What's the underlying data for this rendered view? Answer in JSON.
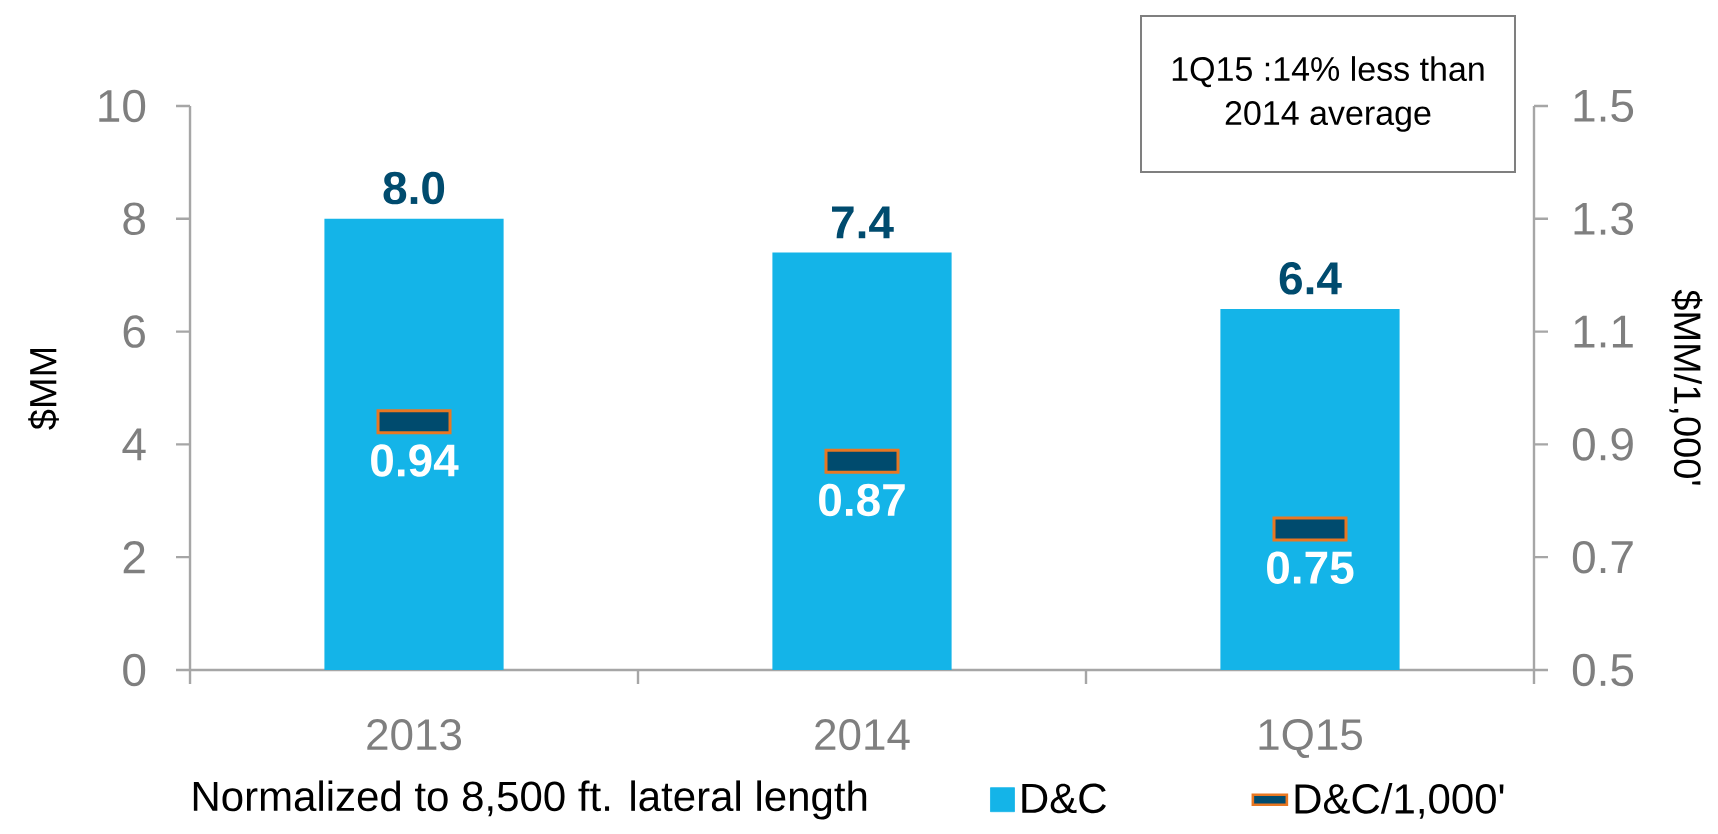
{
  "chart_data": {
    "type": "bar",
    "categories": [
      "2013",
      "2014",
      "1Q15"
    ],
    "ylabel": "$MM",
    "y2label": "$MM/1,000'",
    "ylim": [
      0,
      10
    ],
    "yticks": [
      0,
      2,
      4,
      6,
      8,
      10
    ],
    "y2lim": [
      0.5,
      1.5
    ],
    "y2ticks": [
      0.5,
      0.7,
      0.9,
      1.1,
      1.3,
      1.5
    ],
    "series": [
      {
        "name": "D&C",
        "color": "#14b4e8",
        "values": [
          8.0,
          7.4,
          6.4
        ],
        "value_labels": [
          "8.0",
          "7.4",
          "6.4"
        ]
      },
      {
        "name": "D&C/1,000'",
        "type": "scatter",
        "axis": "y2",
        "color": "#004b6e",
        "values": [
          0.94,
          0.87,
          0.75
        ],
        "value_labels": [
          "0.94",
          "0.87",
          "0.75"
        ]
      }
    ],
    "legend": "bottom",
    "annotations": [
      "1Q15 :14% less than 2014 average",
      "Normalized to 8,500 ft. lateral length"
    ]
  }
}
